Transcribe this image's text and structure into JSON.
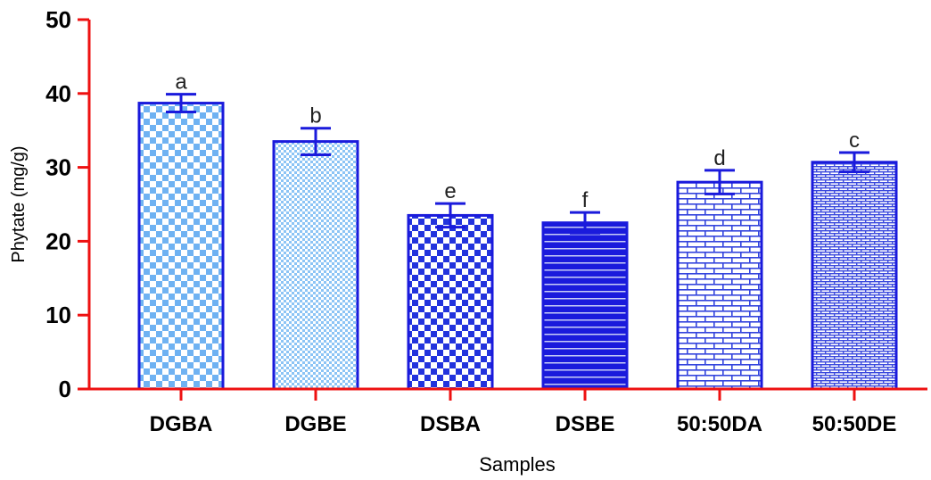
{
  "chart_data": {
    "type": "bar",
    "title": "",
    "xlabel": "Samples",
    "ylabel": "Phytate (mg/g)",
    "ylim": [
      0,
      50
    ],
    "yticks": [
      0,
      10,
      20,
      30,
      40,
      50
    ],
    "grid": false,
    "legend": "none",
    "categories": [
      "DGBA",
      "DGBE",
      "DSBA",
      "DSBE",
      "50:50DA",
      "50:50DE"
    ],
    "values": [
      38.7,
      33.5,
      23.5,
      22.5,
      28.0,
      30.7
    ],
    "errors": [
      1.2,
      1.8,
      1.6,
      1.4,
      1.6,
      1.3
    ],
    "significance_letters": [
      "a",
      "b",
      "e",
      "f",
      "d",
      "c"
    ],
    "colors": {
      "axis": "#ee1111",
      "bar_outline": "#1a1adc",
      "error_bar": "#1a1adc",
      "bar_fills": [
        "#6fb2f2",
        "#8cc4f5",
        "#2233dd",
        "#1a1adc",
        "#3344dd",
        "#3a48dd"
      ]
    }
  }
}
